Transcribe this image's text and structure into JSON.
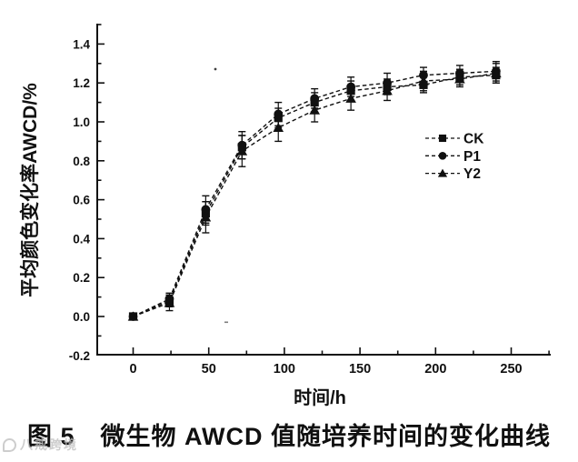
{
  "figure": {
    "caption": "图 5　微生物 AWCD 值随培养时间的变化曲线",
    "watermark": "八戒跨境"
  },
  "chart_data": {
    "type": "line",
    "title": "",
    "xlabel": "时间/h",
    "ylabel": "平均颜色变化率AWCD/%",
    "xlim": [
      -24,
      276
    ],
    "ylim": [
      -0.2,
      1.5
    ],
    "x_ticks": [
      0,
      50,
      100,
      150,
      200,
      250
    ],
    "x_minor_ticks": [
      25,
      75,
      125,
      175,
      225,
      275
    ],
    "y_ticks": [
      -0.2,
      0.0,
      0.2,
      0.4,
      0.6,
      0.8,
      1.0,
      1.2,
      1.4
    ],
    "y_minor_step": 0.1,
    "grid": false,
    "line_style": "dashed",
    "legend_position": "inside-right-middle",
    "x": [
      0,
      24,
      48,
      72,
      96,
      120,
      144,
      168,
      192,
      216,
      240
    ],
    "series": [
      {
        "name": "CK",
        "marker": "square",
        "values": [
          0.0,
          0.08,
          0.53,
          0.87,
          1.02,
          1.1,
          1.16,
          1.18,
          1.19,
          1.23,
          1.24
        ],
        "errors": [
          0,
          0.03,
          0.06,
          0.06,
          0.05,
          0.05,
          0.05,
          0.04,
          0.04,
          0.04,
          0.04
        ]
      },
      {
        "name": "P1",
        "marker": "circle",
        "values": [
          0.0,
          0.09,
          0.55,
          0.88,
          1.04,
          1.12,
          1.18,
          1.2,
          1.24,
          1.25,
          1.26
        ],
        "errors": [
          0,
          0.03,
          0.07,
          0.07,
          0.06,
          0.05,
          0.05,
          0.05,
          0.04,
          0.04,
          0.05
        ]
      },
      {
        "name": "Y2",
        "marker": "triangle",
        "values": [
          0.0,
          0.07,
          0.51,
          0.85,
          0.97,
          1.06,
          1.12,
          1.16,
          1.21,
          1.22,
          1.25
        ],
        "errors": [
          0,
          0.04,
          0.08,
          0.08,
          0.07,
          0.06,
          0.06,
          0.05,
          0.05,
          0.04,
          0.05
        ]
      }
    ],
    "colors": {
      "ink": "#101010",
      "background": "#ffffff"
    }
  }
}
